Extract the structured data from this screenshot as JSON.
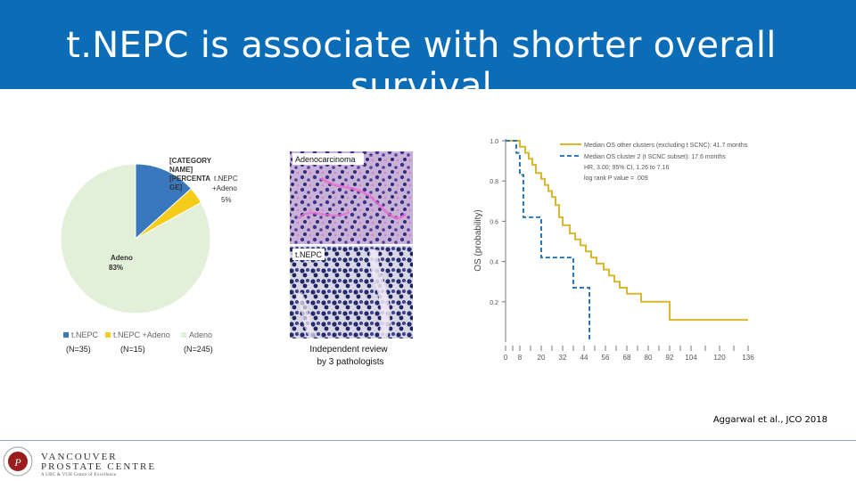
{
  "slide": {
    "title": "t.NEPC is associate with shorter overall survival",
    "citation": "Aggarwal et al., JCO 2018"
  },
  "pie": {
    "label_adeno": "Adeno",
    "label_adeno_pct": "83%",
    "label_category": [
      "[CATEGORY",
      "NAME]",
      "[PERCENTA",
      "GE]"
    ],
    "label_tnepc_adeno": [
      "t.NEPC",
      "+Adeno",
      "5%"
    ],
    "legend": [
      "t.NEPC",
      "t.NEPC +Adeno",
      "Adeno"
    ],
    "counts": [
      "(N=35)",
      "(N=15)",
      "(N=245)"
    ],
    "colors": {
      "tnepc": "#3a78be",
      "tnepc_adeno": "#f5cc1a",
      "adeno": "#e2efd9"
    }
  },
  "histology": {
    "label_top": "Adenocarcinoma",
    "label_bottom": "t.NEPC",
    "caption_line1": "Independent review",
    "caption_line2": "by 3 pathologists"
  },
  "chart_data": {
    "type": "line",
    "title": "",
    "xlabel": "",
    "ylabel": "OS (probability)",
    "xlim": [
      0,
      144
    ],
    "ylim": [
      0,
      1.0
    ],
    "x_ticks": [
      0,
      8,
      20,
      32,
      44,
      56,
      68,
      80,
      92,
      104,
      120,
      136
    ],
    "y_ticks": [
      0.2,
      0.4,
      0.6,
      0.8,
      1.0
    ],
    "legend_placement": "top-right",
    "legend": [
      "Median OS other clusters (excluding t SCNC): 41.7 months",
      "Median OS cluster 2 (t SCNC subset): 17.6 months",
      "HR, 3.00; 95% CI, 1.26 to 7.16",
      "log rank P value = .009"
    ],
    "series": [
      {
        "name": "Median OS other clusters (excluding t SCNC): 41.7 months",
        "color": "#d9b72e",
        "dash": "solid",
        "points": [
          [
            0,
            1.0
          ],
          [
            8,
            1.0
          ],
          [
            8,
            0.97
          ],
          [
            11,
            0.97
          ],
          [
            11,
            0.94
          ],
          [
            13,
            0.94
          ],
          [
            13,
            0.91
          ],
          [
            15,
            0.91
          ],
          [
            15,
            0.88
          ],
          [
            17,
            0.88
          ],
          [
            17,
            0.84
          ],
          [
            20,
            0.84
          ],
          [
            20,
            0.81
          ],
          [
            22,
            0.81
          ],
          [
            22,
            0.78
          ],
          [
            24,
            0.78
          ],
          [
            24,
            0.75
          ],
          [
            26,
            0.75
          ],
          [
            26,
            0.72
          ],
          [
            28,
            0.72
          ],
          [
            28,
            0.68
          ],
          [
            30,
            0.68
          ],
          [
            30,
            0.62
          ],
          [
            32,
            0.62
          ],
          [
            32,
            0.58
          ],
          [
            36,
            0.58
          ],
          [
            36,
            0.54
          ],
          [
            39,
            0.54
          ],
          [
            39,
            0.51
          ],
          [
            42,
            0.51
          ],
          [
            42,
            0.48
          ],
          [
            45,
            0.48
          ],
          [
            45,
            0.45
          ],
          [
            48,
            0.45
          ],
          [
            48,
            0.42
          ],
          [
            51,
            0.42
          ],
          [
            51,
            0.39
          ],
          [
            55,
            0.39
          ],
          [
            55,
            0.36
          ],
          [
            58,
            0.36
          ],
          [
            58,
            0.33
          ],
          [
            61,
            0.33
          ],
          [
            61,
            0.3
          ],
          [
            64,
            0.3
          ],
          [
            64,
            0.27
          ],
          [
            68,
            0.27
          ],
          [
            68,
            0.24
          ],
          [
            76,
            0.24
          ],
          [
            76,
            0.2
          ],
          [
            92,
            0.2
          ],
          [
            92,
            0.11
          ],
          [
            136,
            0.11
          ]
        ]
      },
      {
        "name": "Median OS cluster 2 (t SCNC subset): 17.6 months",
        "color": "#2e78b8",
        "dash": "dashed",
        "points": [
          [
            0,
            1.0
          ],
          [
            6,
            1.0
          ],
          [
            6,
            0.94
          ],
          [
            8,
            0.94
          ],
          [
            8,
            0.83
          ],
          [
            10,
            0.83
          ],
          [
            10,
            0.62
          ],
          [
            20,
            0.62
          ],
          [
            20,
            0.42
          ],
          [
            38,
            0.42
          ],
          [
            38,
            0.27
          ],
          [
            47,
            0.27
          ],
          [
            47,
            0.0
          ]
        ]
      }
    ]
  }
}
